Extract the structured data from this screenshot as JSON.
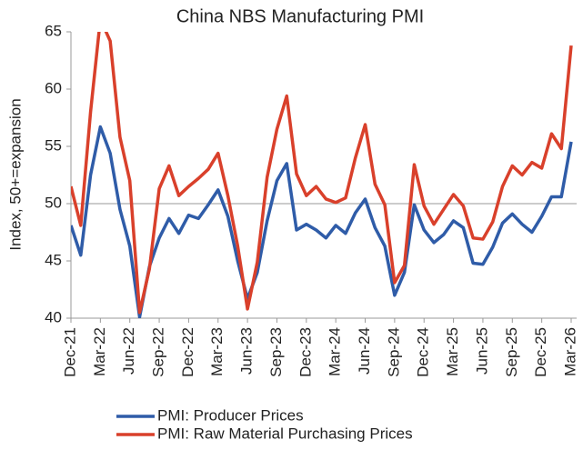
{
  "chart_data": {
    "type": "line",
    "title": "China NBS Manufacturing PMI",
    "ylabel": "Index, 50+=expansion",
    "categories": [
      "Dec-21",
      null,
      null,
      "Mar-22",
      null,
      null,
      "Jun-22",
      null,
      null,
      "Sep-22",
      null,
      null,
      "Dec-22",
      null,
      null,
      "Mar-23",
      null,
      null,
      "Jun-23",
      null,
      null,
      "Sep-23",
      null,
      null,
      "Dec-23",
      null,
      null,
      "Mar-24",
      null,
      null,
      "Jun-24",
      null,
      null,
      "Sep-24",
      null,
      null,
      "Dec-24",
      null,
      null,
      "Mar-25",
      null,
      null,
      "Jun-25",
      null,
      null,
      "Sep-25",
      null,
      null,
      "Dec-25",
      null,
      null,
      "Mar-26"
    ],
    "series": [
      {
        "name": "PMI: Producer Prices",
        "color": "#2f5ca8",
        "values": [
          48.1,
          45.5,
          52.5,
          56.7,
          54.4,
          49.5,
          46.3,
          40.1,
          44.5,
          47,
          48.7,
          47.4,
          49,
          48.7,
          49.9,
          51.2,
          48.9,
          45,
          41.7,
          44,
          48.5,
          52,
          53.5,
          47.7,
          48.2,
          47.7,
          47,
          48.1,
          47.4,
          49.2,
          50.4,
          47.9,
          46.3,
          42,
          44,
          49.9,
          47.7,
          46.6,
          47.3,
          48.5,
          47.9,
          44.8,
          44.7,
          46.2,
          48.3,
          49.1,
          48.2,
          47.5,
          48.9,
          50.6,
          50.6,
          55.4
        ]
      },
      {
        "name": "PMI: Raw Material Purchasing Prices",
        "color": "#d9402b",
        "values": [
          51.5,
          48.1,
          58,
          66.1,
          64.2,
          55.8,
          52,
          40.5,
          44.3,
          51.3,
          53.3,
          50.7,
          51.5,
          52.2,
          53,
          54.4,
          50.7,
          46.3,
          40.8,
          44.9,
          52.3,
          56.5,
          59.4,
          52.6,
          50.7,
          51.5,
          50.4,
          50.1,
          50.5,
          54,
          56.9,
          51.7,
          49.9,
          43.1,
          44.6,
          53.4,
          49.8,
          48.2,
          49.5,
          50.8,
          49.8,
          47,
          46.9,
          48.4,
          51.5,
          53.3,
          52.5,
          53.6,
          53.1,
          56.1,
          54.8,
          63.8
        ]
      }
    ],
    "ylim": [
      40,
      65
    ],
    "yticks": [
      40,
      45,
      50,
      55,
      60,
      65
    ],
    "hline": 50,
    "grid": false,
    "legend": "bottom"
  }
}
